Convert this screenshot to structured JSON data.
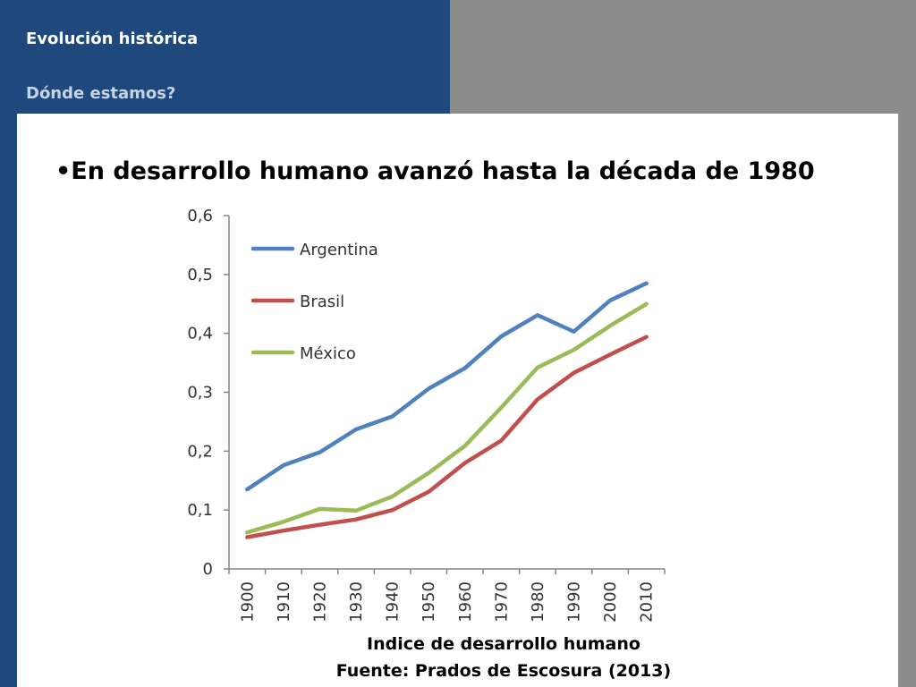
{
  "header": {
    "section_title": "Evolución histórica",
    "subsection_title": "Dónde estamos?"
  },
  "slide": {
    "headline": "•En desarrollo humano avanzó hasta la década de 1980",
    "caption_line1": "Indice de desarrollo humano",
    "caption_line2": "Fuente: Prados de Escosura (2013)"
  },
  "colors": {
    "header_blue": "#1f497d",
    "side_grey": "#8c8c8c",
    "argentina": "#4f81bd",
    "brasil": "#c0504d",
    "mexico": "#9bbb59"
  },
  "chart_data": {
    "type": "line",
    "categories": [
      "1900",
      "1910",
      "1920",
      "1930",
      "1940",
      "1950",
      "1960",
      "1970",
      "1980",
      "1990",
      "2000",
      "2010"
    ],
    "series": [
      {
        "name": "Argentina",
        "color": "#4f81bd",
        "values": [
          0.135,
          0.176,
          0.198,
          0.237,
          0.259,
          0.306,
          0.341,
          0.395,
          0.431,
          0.403,
          0.456,
          0.485
        ]
      },
      {
        "name": "Brasil",
        "color": "#c0504d",
        "values": [
          0.054,
          0.065,
          0.075,
          0.084,
          0.1,
          0.131,
          0.18,
          0.218,
          0.288,
          0.333,
          0.364,
          0.394
        ]
      },
      {
        "name": "México",
        "color": "#9bbb59",
        "values": [
          0.062,
          0.08,
          0.102,
          0.099,
          0.123,
          0.163,
          0.209,
          0.274,
          0.342,
          0.372,
          0.413,
          0.45
        ]
      }
    ],
    "y_ticks": [
      "0",
      "0,1",
      "0,2",
      "0,3",
      "0,4",
      "0,5",
      "0,6"
    ],
    "ylim": [
      0,
      0.6
    ],
    "grid": false,
    "legend_position": "top-left inside"
  }
}
